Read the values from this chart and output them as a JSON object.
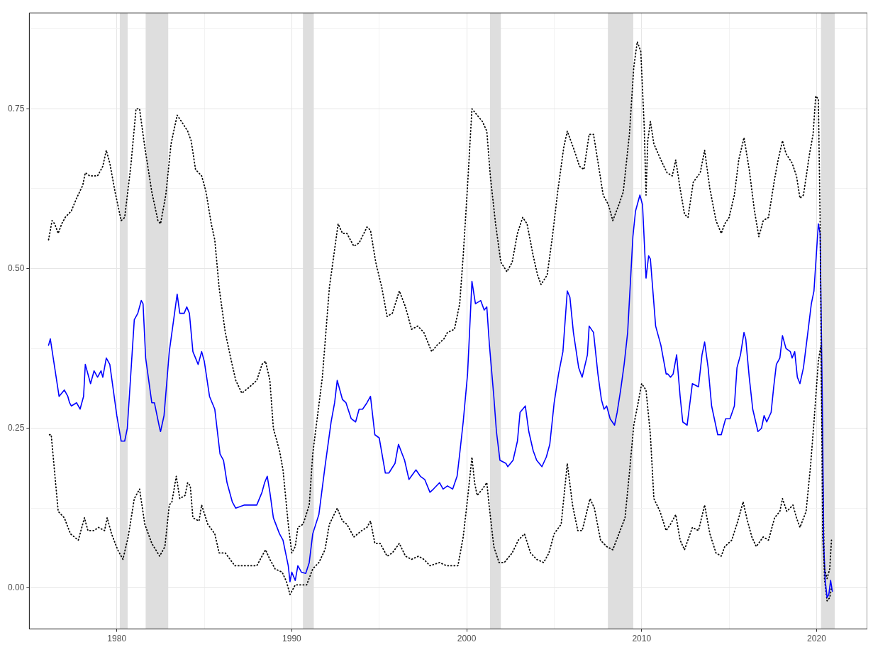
{
  "chart_data": {
    "type": "line",
    "xlim": [
      1975,
      2022.9
    ],
    "ylim": [
      -0.064,
      0.9
    ],
    "xticks": [
      {
        "value": 1975,
        "label": null
      },
      1980,
      {
        "value": 1985,
        "label": null
      },
      1990,
      {
        "value": 1995,
        "label": null
      },
      2000,
      {
        "value": 2005,
        "label": null
      },
      2010,
      {
        "value": 2015,
        "label": null
      },
      2020
    ],
    "yticks": [
      {
        "value": 0,
        "label": "0.00"
      },
      {
        "value": 0.125,
        "label": null
      },
      {
        "value": 0.25,
        "label": "0.25"
      },
      {
        "value": 0.375,
        "label": null
      },
      {
        "value": 0.5,
        "label": "0.50"
      },
      {
        "value": 0.625,
        "label": null
      },
      {
        "value": 0.75,
        "label": "0.75"
      },
      {
        "value": 0.875,
        "label": null
      }
    ],
    "grid": true,
    "bands": [
      {
        "axis": "x",
        "from": 1980.17,
        "to": 1980.62,
        "color": "#dedede"
      },
      {
        "axis": "x",
        "from": 1981.65,
        "to": 1982.94,
        "color": "#dedede"
      },
      {
        "axis": "x",
        "from": 1990.64,
        "to": 1991.26,
        "color": "#dedede"
      },
      {
        "axis": "x",
        "from": 2001.33,
        "to": 2001.95,
        "color": "#dedede"
      },
      {
        "axis": "x",
        "from": 2008.07,
        "to": 2009.52,
        "color": "#dedede"
      },
      {
        "axis": "x",
        "from": 2020.25,
        "to": 2021.04,
        "color": "#dedede"
      }
    ],
    "series": [
      {
        "color": "#000000",
        "line_style": "dotted",
        "x": [
          1976.1,
          1976.3,
          1976.45,
          1976.65,
          1976.85,
          1977.05,
          1977.4,
          1977.7,
          1978.05,
          1978.2,
          1978.45,
          1978.7,
          1978.9,
          1979.2,
          1979.4,
          1979.6,
          1979.9,
          1980.25,
          1980.45,
          1980.8,
          1981.1,
          1981.3,
          1981.6,
          1982.0,
          1982.35,
          1982.5,
          1982.8,
          1983.1,
          1983.45,
          1983.7,
          1984.05,
          1984.25,
          1984.5,
          1984.85,
          1985.1,
          1985.4,
          1985.6,
          1985.85,
          1986.2,
          1986.55,
          1986.8,
          1987.15,
          1987.6,
          1988.0,
          1988.3,
          1988.5,
          1988.75,
          1988.95,
          1989.3,
          1989.5,
          1989.8,
          1990.0,
          1990.2,
          1990.35,
          1990.65,
          1991.0,
          1991.2,
          1991.75,
          1992.15,
          1992.65,
          1992.9,
          1993.15,
          1993.55,
          1993.85,
          1994.3,
          1994.5,
          1994.8,
          1995.15,
          1995.45,
          1995.75,
          1996.15,
          1996.5,
          1996.85,
          1997.2,
          1997.55,
          1998.0,
          1998.3,
          1998.7,
          1998.9,
          1999.3,
          1999.6,
          1999.8,
          2000.05,
          2000.3,
          2000.6,
          2000.9,
          2001.15,
          2001.35,
          2001.65,
          2001.95,
          2002.3,
          2002.6,
          2002.9,
          2003.2,
          2003.45,
          2003.8,
          2004.05,
          2004.25,
          2004.6,
          2004.9,
          2005.2,
          2005.55,
          2005.75,
          2005.95,
          2006.15,
          2006.45,
          2006.7,
          2007.0,
          2007.25,
          2007.6,
          2007.8,
          2008.1,
          2008.35,
          2008.7,
          2008.95,
          2009.3,
          2009.55,
          2009.75,
          2009.95,
          2010.15,
          2010.25,
          2010.35,
          2010.5,
          2010.7,
          2011.1,
          2011.45,
          2011.75,
          2011.95,
          2012.2,
          2012.45,
          2012.65,
          2012.95,
          2013.35,
          2013.6,
          2013.9,
          2014.25,
          2014.55,
          2014.75,
          2015.0,
          2015.3,
          2015.55,
          2015.85,
          2016.15,
          2016.45,
          2016.7,
          2016.95,
          2017.25,
          2017.6,
          2017.8,
          2018.05,
          2018.25,
          2018.6,
          2018.85,
          2019.05,
          2019.25,
          2019.6,
          2019.8,
          2019.95,
          2020.1,
          2020.2,
          2020.35,
          2020.45,
          2020.6,
          2020.75,
          2020.85
        ],
        "values": [
          0.545,
          0.575,
          0.57,
          0.555,
          0.57,
          0.58,
          0.59,
          0.61,
          0.63,
          0.65,
          0.645,
          0.645,
          0.645,
          0.66,
          0.685,
          0.665,
          0.62,
          0.575,
          0.58,
          0.66,
          0.75,
          0.75,
          0.69,
          0.62,
          0.575,
          0.57,
          0.615,
          0.695,
          0.74,
          0.73,
          0.715,
          0.7,
          0.655,
          0.645,
          0.62,
          0.57,
          0.545,
          0.47,
          0.4,
          0.355,
          0.325,
          0.305,
          0.315,
          0.325,
          0.35,
          0.355,
          0.325,
          0.25,
          0.215,
          0.185,
          0.1,
          0.055,
          0.065,
          0.095,
          0.1,
          0.13,
          0.21,
          0.33,
          0.47,
          0.57,
          0.555,
          0.555,
          0.535,
          0.54,
          0.565,
          0.56,
          0.51,
          0.47,
          0.425,
          0.43,
          0.465,
          0.44,
          0.405,
          0.41,
          0.4,
          0.37,
          0.38,
          0.39,
          0.4,
          0.405,
          0.445,
          0.52,
          0.63,
          0.75,
          0.74,
          0.73,
          0.715,
          0.645,
          0.57,
          0.51,
          0.495,
          0.51,
          0.555,
          0.58,
          0.57,
          0.52,
          0.49,
          0.475,
          0.49,
          0.55,
          0.62,
          0.69,
          0.715,
          0.7,
          0.685,
          0.66,
          0.655,
          0.71,
          0.71,
          0.65,
          0.615,
          0.6,
          0.575,
          0.6,
          0.62,
          0.71,
          0.815,
          0.855,
          0.84,
          0.72,
          0.615,
          0.7,
          0.73,
          0.695,
          0.67,
          0.65,
          0.645,
          0.67,
          0.625,
          0.585,
          0.58,
          0.635,
          0.65,
          0.685,
          0.625,
          0.575,
          0.555,
          0.57,
          0.58,
          0.615,
          0.67,
          0.705,
          0.655,
          0.59,
          0.55,
          0.575,
          0.58,
          0.64,
          0.67,
          0.7,
          0.68,
          0.665,
          0.645,
          0.61,
          0.615,
          0.68,
          0.71,
          0.77,
          0.765,
          0.58,
          0.08,
          0.03,
          0.015,
          0.03,
          0.075
        ]
      },
      {
        "color": "#0000ff",
        "line_style": "solid",
        "x": [
          1976.1,
          1976.2,
          1976.7,
          1977.0,
          1977.2,
          1977.3,
          1977.4,
          1977.7,
          1977.9,
          1978.1,
          1978.2,
          1978.3,
          1978.5,
          1978.7,
          1978.9,
          1979.1,
          1979.2,
          1979.4,
          1979.6,
          1979.8,
          1980.0,
          1980.25,
          1980.45,
          1980.6,
          1981.0,
          1981.2,
          1981.4,
          1981.5,
          1981.65,
          1982.0,
          1982.15,
          1982.45,
          1982.5,
          1982.7,
          1983.0,
          1983.3,
          1983.45,
          1983.6,
          1983.85,
          1984.0,
          1984.15,
          1984.35,
          1984.65,
          1984.85,
          1985.0,
          1985.3,
          1985.45,
          1985.6,
          1985.9,
          1986.1,
          1986.3,
          1986.6,
          1986.8,
          1987.3,
          1987.6,
          1988.0,
          1988.3,
          1988.45,
          1988.6,
          1988.75,
          1988.95,
          1989.3,
          1989.5,
          1989.8,
          1989.9,
          1990.0,
          1990.2,
          1990.35,
          1990.55,
          1990.8,
          1991.0,
          1991.2,
          1991.55,
          1991.9,
          1992.25,
          1992.45,
          1992.6,
          1992.9,
          1993.1,
          1993.4,
          1993.65,
          1993.85,
          1994.05,
          1994.3,
          1994.5,
          1994.75,
          1995.0,
          1995.35,
          1995.55,
          1995.9,
          1996.1,
          1996.45,
          1996.7,
          1997.1,
          1997.35,
          1997.6,
          1997.9,
          1998.1,
          1998.45,
          1998.65,
          1998.9,
          1999.2,
          1999.45,
          1999.6,
          1999.8,
          2000.05,
          2000.3,
          2000.5,
          2000.8,
          2001.0,
          2001.15,
          2001.3,
          2001.55,
          2001.7,
          2001.9,
          2002.25,
          2002.35,
          2002.65,
          2002.9,
          2003.05,
          2003.2,
          2003.35,
          2003.55,
          2003.8,
          2004.0,
          2004.3,
          2004.55,
          2004.75,
          2005.0,
          2005.25,
          2005.5,
          2005.75,
          2005.9,
          2006.1,
          2006.4,
          2006.6,
          2006.9,
          2007.0,
          2007.25,
          2007.5,
          2007.7,
          2007.85,
          2008.0,
          2008.2,
          2008.45,
          2008.6,
          2008.8,
          2009.0,
          2009.2,
          2009.5,
          2009.65,
          2009.9,
          2010.05,
          2010.25,
          2010.4,
          2010.5,
          2010.8,
          2011.1,
          2011.4,
          2011.5,
          2011.65,
          2011.8,
          2012.0,
          2012.2,
          2012.35,
          2012.6,
          2012.9,
          2013.25,
          2013.45,
          2013.6,
          2013.8,
          2014.0,
          2014.35,
          2014.55,
          2014.8,
          2015.05,
          2015.3,
          2015.45,
          2015.65,
          2015.85,
          2015.95,
          2016.15,
          2016.35,
          2016.65,
          2016.85,
          2017.0,
          2017.15,
          2017.4,
          2017.55,
          2017.7,
          2017.9,
          2018.05,
          2018.25,
          2018.5,
          2018.6,
          2018.75,
          2018.9,
          2019.05,
          2019.25,
          2019.5,
          2019.7,
          2019.85,
          2020.1,
          2020.2,
          2020.35,
          2020.4,
          2020.5,
          2020.6,
          2020.7,
          2020.8,
          2020.9
        ],
        "values": [
          0.38,
          0.39,
          0.3,
          0.31,
          0.3,
          0.29,
          0.285,
          0.29,
          0.28,
          0.3,
          0.35,
          0.34,
          0.32,
          0.34,
          0.33,
          0.34,
          0.33,
          0.36,
          0.35,
          0.31,
          0.27,
          0.23,
          0.23,
          0.25,
          0.42,
          0.43,
          0.45,
          0.445,
          0.36,
          0.29,
          0.29,
          0.25,
          0.245,
          0.27,
          0.37,
          0.43,
          0.46,
          0.43,
          0.43,
          0.44,
          0.43,
          0.37,
          0.35,
          0.37,
          0.355,
          0.3,
          0.29,
          0.28,
          0.21,
          0.2,
          0.165,
          0.135,
          0.125,
          0.13,
          0.13,
          0.13,
          0.15,
          0.165,
          0.175,
          0.15,
          0.11,
          0.085,
          0.075,
          0.035,
          0.01,
          0.025,
          0.012,
          0.035,
          0.025,
          0.023,
          0.04,
          0.085,
          0.115,
          0.19,
          0.26,
          0.29,
          0.325,
          0.295,
          0.29,
          0.265,
          0.26,
          0.28,
          0.28,
          0.29,
          0.3,
          0.24,
          0.235,
          0.18,
          0.18,
          0.195,
          0.225,
          0.2,
          0.17,
          0.185,
          0.175,
          0.17,
          0.15,
          0.155,
          0.165,
          0.155,
          0.16,
          0.155,
          0.175,
          0.21,
          0.26,
          0.335,
          0.48,
          0.445,
          0.45,
          0.435,
          0.44,
          0.38,
          0.3,
          0.245,
          0.2,
          0.195,
          0.19,
          0.2,
          0.23,
          0.275,
          0.28,
          0.285,
          0.245,
          0.215,
          0.2,
          0.19,
          0.205,
          0.225,
          0.29,
          0.335,
          0.37,
          0.465,
          0.455,
          0.4,
          0.345,
          0.33,
          0.365,
          0.41,
          0.4,
          0.335,
          0.295,
          0.28,
          0.285,
          0.265,
          0.255,
          0.275,
          0.31,
          0.35,
          0.4,
          0.55,
          0.59,
          0.615,
          0.6,
          0.485,
          0.52,
          0.515,
          0.41,
          0.38,
          0.335,
          0.335,
          0.33,
          0.335,
          0.365,
          0.3,
          0.26,
          0.255,
          0.32,
          0.315,
          0.365,
          0.385,
          0.345,
          0.285,
          0.24,
          0.24,
          0.265,
          0.265,
          0.285,
          0.345,
          0.365,
          0.4,
          0.39,
          0.33,
          0.28,
          0.245,
          0.25,
          0.27,
          0.26,
          0.275,
          0.315,
          0.35,
          0.36,
          0.395,
          0.375,
          0.37,
          0.36,
          0.37,
          0.33,
          0.32,
          0.345,
          0.4,
          0.445,
          0.465,
          0.57,
          0.555,
          0.245,
          0.07,
          0.01,
          -0.015,
          -0.01,
          0.012,
          -0.005
        ]
      },
      {
        "color": "#000000",
        "line_style": "dotted",
        "x": [
          1976.15,
          1976.25,
          1976.45,
          1976.65,
          1977.0,
          1977.35,
          1977.8,
          1978.15,
          1978.35,
          1978.7,
          1978.95,
          1979.3,
          1979.45,
          1979.7,
          1980.05,
          1980.35,
          1980.65,
          1981.0,
          1981.3,
          1981.6,
          1982.0,
          1982.45,
          1982.75,
          1983.0,
          1983.15,
          1983.4,
          1983.6,
          1983.9,
          1984.05,
          1984.2,
          1984.35,
          1984.7,
          1984.85,
          1985.2,
          1985.6,
          1985.85,
          1986.2,
          1986.75,
          1987.15,
          1987.6,
          1988.0,
          1988.3,
          1988.5,
          1988.75,
          1989.05,
          1989.45,
          1989.7,
          1989.9,
          1990.2,
          1990.45,
          1990.85,
          1991.2,
          1991.55,
          1991.9,
          1992.15,
          1992.6,
          1992.9,
          1993.15,
          1993.55,
          1994.0,
          1994.3,
          1994.5,
          1994.75,
          1995.05,
          1995.45,
          1995.75,
          1996.15,
          1996.5,
          1996.85,
          1997.25,
          1997.55,
          1997.9,
          1998.45,
          1998.85,
          1999.3,
          1999.5,
          1999.8,
          2000.05,
          2000.3,
          2000.45,
          2000.6,
          2000.9,
          2001.15,
          2001.3,
          2001.55,
          2001.85,
          2002.15,
          2002.6,
          2002.95,
          2003.3,
          2003.65,
          2004.0,
          2004.4,
          2004.7,
          2005.0,
          2005.4,
          2005.75,
          2006.05,
          2006.35,
          2006.6,
          2007.05,
          2007.3,
          2007.65,
          2008.0,
          2008.35,
          2008.7,
          2009.05,
          2009.3,
          2009.55,
          2009.8,
          2010.0,
          2010.25,
          2010.5,
          2010.7,
          2011.05,
          2011.4,
          2011.65,
          2011.95,
          2012.2,
          2012.45,
          2012.9,
          2013.25,
          2013.6,
          2013.9,
          2014.25,
          2014.55,
          2014.75,
          2015.15,
          2015.5,
          2015.8,
          2016.05,
          2016.3,
          2016.55,
          2016.95,
          2017.25,
          2017.6,
          2017.9,
          2018.05,
          2018.3,
          2018.65,
          2018.85,
          2019.05,
          2019.4,
          2019.65,
          2019.85,
          2020.1,
          2020.25,
          2020.35,
          2020.45,
          2020.6,
          2020.75,
          2020.85
        ],
        "values": [
          0.24,
          0.24,
          0.18,
          0.12,
          0.11,
          0.085,
          0.075,
          0.11,
          0.09,
          0.09,
          0.095,
          0.09,
          0.11,
          0.085,
          0.06,
          0.045,
          0.08,
          0.14,
          0.155,
          0.1,
          0.07,
          0.05,
          0.065,
          0.13,
          0.135,
          0.175,
          0.14,
          0.145,
          0.165,
          0.16,
          0.11,
          0.105,
          0.13,
          0.1,
          0.085,
          0.055,
          0.055,
          0.035,
          0.035,
          0.035,
          0.035,
          0.05,
          0.06,
          0.045,
          0.03,
          0.025,
          0.01,
          -0.01,
          0.005,
          0.005,
          0.005,
          0.03,
          0.04,
          0.06,
          0.1,
          0.125,
          0.105,
          0.1,
          0.08,
          0.09,
          0.095,
          0.105,
          0.07,
          0.07,
          0.05,
          0.055,
          0.07,
          0.05,
          0.045,
          0.05,
          0.045,
          0.035,
          0.04,
          0.035,
          0.035,
          0.035,
          0.08,
          0.14,
          0.205,
          0.165,
          0.145,
          0.155,
          0.165,
          0.125,
          0.065,
          0.04,
          0.04,
          0.055,
          0.075,
          0.085,
          0.055,
          0.045,
          0.04,
          0.055,
          0.085,
          0.1,
          0.195,
          0.13,
          0.09,
          0.09,
          0.14,
          0.125,
          0.075,
          0.065,
          0.06,
          0.085,
          0.11,
          0.18,
          0.255,
          0.29,
          0.32,
          0.31,
          0.24,
          0.14,
          0.12,
          0.09,
          0.1,
          0.115,
          0.075,
          0.06,
          0.095,
          0.09,
          0.13,
          0.085,
          0.055,
          0.05,
          0.065,
          0.075,
          0.105,
          0.135,
          0.105,
          0.08,
          0.065,
          0.08,
          0.075,
          0.11,
          0.12,
          0.14,
          0.12,
          0.13,
          0.11,
          0.095,
          0.12,
          0.19,
          0.26,
          0.355,
          0.38,
          0.19,
          0.015,
          -0.02,
          -0.015,
          0.0
        ]
      }
    ]
  }
}
